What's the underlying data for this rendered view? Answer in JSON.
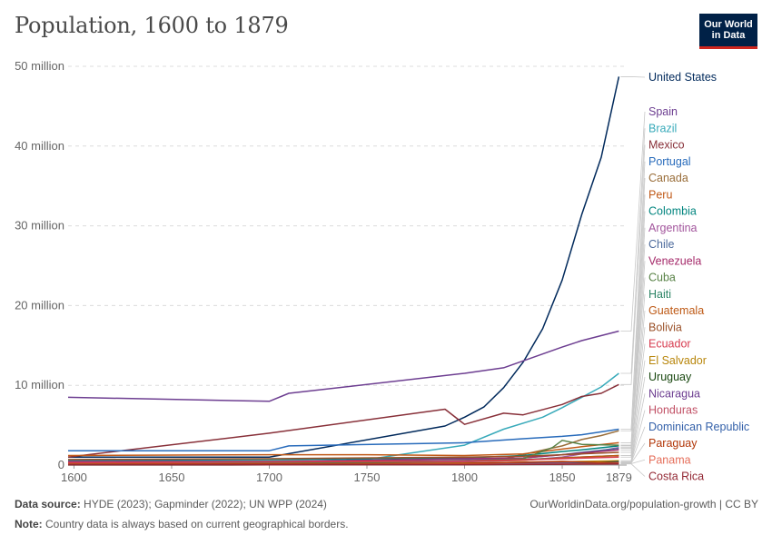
{
  "title": "Population, 1600 to 1879",
  "logo": {
    "line1": "Our World",
    "line2": "in Data"
  },
  "footer": {
    "source_label": "Data source:",
    "source_text": "HYDE (2023); Gapminder (2022); UN WPP (2024)",
    "url_text": "OurWorldinData.org/population-growth | CC BY",
    "note_label": "Note:",
    "note_text": "Country data is always based on current geographical borders."
  },
  "chart_data": {
    "type": "line",
    "title": "Population, 1600 to 1879",
    "xlim": [
      1597,
      1883
    ],
    "ylim": [
      0,
      50000000
    ],
    "x_ticks": [
      {
        "value": 1600,
        "label": "1600"
      },
      {
        "value": 1650,
        "label": "1650"
      },
      {
        "value": 1700,
        "label": "1700"
      },
      {
        "value": 1750,
        "label": "1750"
      },
      {
        "value": 1800,
        "label": "1800"
      },
      {
        "value": 1850,
        "label": "1850"
      },
      {
        "value": 1879,
        "label": "1879"
      }
    ],
    "y_ticks": [
      {
        "value": 0,
        "label": "0"
      },
      {
        "value": 10000000,
        "label": "10 million"
      },
      {
        "value": 20000000,
        "label": "20 million"
      },
      {
        "value": 30000000,
        "label": "30 million"
      },
      {
        "value": 40000000,
        "label": "40 million"
      },
      {
        "value": 50000000,
        "label": "50 million"
      }
    ],
    "grid": "horizontal dashed",
    "legend": "right",
    "series": [
      {
        "name": "United States",
        "color": "#00295b",
        "points": [
          [
            1597,
            1000000
          ],
          [
            1700,
            1000000
          ],
          [
            1790,
            4900000
          ],
          [
            1800,
            6000000
          ],
          [
            1810,
            7300000
          ],
          [
            1820,
            9700000
          ],
          [
            1830,
            12900000
          ],
          [
            1840,
            17100000
          ],
          [
            1850,
            23200000
          ],
          [
            1860,
            31400000
          ],
          [
            1870,
            38600000
          ],
          [
            1879,
            48700000
          ]
        ]
      },
      {
        "name": "Spain",
        "color": "#6d3e91",
        "points": [
          [
            1597,
            8500000
          ],
          [
            1700,
            8000000
          ],
          [
            1710,
            9000000
          ],
          [
            1800,
            11500000
          ],
          [
            1820,
            12200000
          ],
          [
            1850,
            14800000
          ],
          [
            1860,
            15600000
          ],
          [
            1879,
            16800000
          ]
        ]
      },
      {
        "name": "Brazil",
        "color": "#38aaba",
        "points": [
          [
            1597,
            300000
          ],
          [
            1700,
            400000
          ],
          [
            1750,
            700000
          ],
          [
            1800,
            2500000
          ],
          [
            1820,
            4500000
          ],
          [
            1840,
            6000000
          ],
          [
            1850,
            7200000
          ],
          [
            1860,
            8500000
          ],
          [
            1870,
            9800000
          ],
          [
            1879,
            11500000
          ]
        ]
      },
      {
        "name": "Mexico",
        "color": "#883039",
        "points": [
          [
            1597,
            1000000
          ],
          [
            1700,
            4000000
          ],
          [
            1790,
            7000000
          ],
          [
            1800,
            5100000
          ],
          [
            1820,
            6500000
          ],
          [
            1830,
            6300000
          ],
          [
            1850,
            7600000
          ],
          [
            1860,
            8600000
          ],
          [
            1870,
            9000000
          ],
          [
            1879,
            10100000
          ]
        ]
      },
      {
        "name": "Portugal",
        "color": "#286bbb",
        "points": [
          [
            1597,
            1800000
          ],
          [
            1700,
            1800000
          ],
          [
            1710,
            2400000
          ],
          [
            1800,
            2800000
          ],
          [
            1830,
            3300000
          ],
          [
            1850,
            3600000
          ],
          [
            1860,
            3800000
          ],
          [
            1879,
            4500000
          ]
        ]
      },
      {
        "name": "Canada",
        "color": "#996d39",
        "points": [
          [
            1597,
            200000
          ],
          [
            1700,
            300000
          ],
          [
            1800,
            500000
          ],
          [
            1820,
            800000
          ],
          [
            1850,
            2400000
          ],
          [
            1860,
            3200000
          ],
          [
            1870,
            3700000
          ],
          [
            1879,
            4300000
          ]
        ]
      },
      {
        "name": "Peru",
        "color": "#c05917",
        "points": [
          [
            1597,
            1200000
          ],
          [
            1700,
            1300000
          ],
          [
            1750,
            1300000
          ],
          [
            1800,
            1200000
          ],
          [
            1830,
            1400000
          ],
          [
            1850,
            2000000
          ],
          [
            1860,
            2300000
          ],
          [
            1879,
            2800000
          ]
        ]
      },
      {
        "name": "Colombia",
        "color": "#00847e",
        "points": [
          [
            1597,
            600000
          ],
          [
            1700,
            700000
          ],
          [
            1800,
            900000
          ],
          [
            1830,
            1200000
          ],
          [
            1850,
            1700000
          ],
          [
            1860,
            1900000
          ],
          [
            1879,
            2400000
          ]
        ]
      },
      {
        "name": "Argentina",
        "color": "#a2559c",
        "points": [
          [
            1597,
            300000
          ],
          [
            1700,
            300000
          ],
          [
            1800,
            400000
          ],
          [
            1830,
            600000
          ],
          [
            1850,
            1000000
          ],
          [
            1860,
            1400000
          ],
          [
            1879,
            2200000
          ]
        ]
      },
      {
        "name": "Chile",
        "color": "#4c6a9c",
        "points": [
          [
            1597,
            500000
          ],
          [
            1700,
            500000
          ],
          [
            1800,
            700000
          ],
          [
            1830,
            900000
          ],
          [
            1850,
            1300000
          ],
          [
            1860,
            1600000
          ],
          [
            1879,
            2100000
          ]
        ]
      },
      {
        "name": "Venezuela",
        "color": "#a52a6a",
        "points": [
          [
            1597,
            400000
          ],
          [
            1700,
            400000
          ],
          [
            1800,
            800000
          ],
          [
            1830,
            900000
          ],
          [
            1850,
            1300000
          ],
          [
            1860,
            1500000
          ],
          [
            1879,
            1900000
          ]
        ]
      },
      {
        "name": "Cuba",
        "color": "#578145",
        "points": [
          [
            1597,
            100000
          ],
          [
            1700,
            200000
          ],
          [
            1800,
            500000
          ],
          [
            1830,
            800000
          ],
          [
            1845,
            2200000
          ],
          [
            1850,
            3100000
          ],
          [
            1860,
            2600000
          ],
          [
            1879,
            2500000
          ]
        ]
      },
      {
        "name": "Haiti",
        "color": "#2c8465",
        "points": [
          [
            1597,
            50000
          ],
          [
            1700,
            100000
          ],
          [
            1790,
            500000
          ],
          [
            1800,
            500000
          ],
          [
            1830,
            700000
          ],
          [
            1850,
            900000
          ],
          [
            1879,
            1200000
          ]
        ]
      },
      {
        "name": "Guatemala",
        "color": "#be5915",
        "points": [
          [
            1597,
            300000
          ],
          [
            1700,
            400000
          ],
          [
            1800,
            500000
          ],
          [
            1830,
            600000
          ],
          [
            1850,
            900000
          ],
          [
            1879,
            1200000
          ]
        ]
      },
      {
        "name": "Bolivia",
        "color": "#9a5129",
        "points": [
          [
            1597,
            700000
          ],
          [
            1700,
            800000
          ],
          [
            1800,
            1000000
          ],
          [
            1830,
            1100000
          ],
          [
            1850,
            1300000
          ],
          [
            1879,
            1600000
          ]
        ]
      },
      {
        "name": "Ecuador",
        "color": "#d73c50",
        "points": [
          [
            1597,
            300000
          ],
          [
            1700,
            400000
          ],
          [
            1800,
            500000
          ],
          [
            1850,
            800000
          ],
          [
            1879,
            1000000
          ]
        ]
      },
      {
        "name": "El Salvador",
        "color": "#b8860b",
        "points": [
          [
            1597,
            100000
          ],
          [
            1700,
            150000
          ],
          [
            1800,
            250000
          ],
          [
            1850,
            400000
          ],
          [
            1879,
            550000
          ]
        ]
      },
      {
        "name": "Uruguay",
        "color": "#18470f",
        "points": [
          [
            1597,
            10000
          ],
          [
            1700,
            20000
          ],
          [
            1800,
            60000
          ],
          [
            1850,
            130000
          ],
          [
            1879,
            420000
          ]
        ]
      },
      {
        "name": "Nicaragua",
        "color": "#6d3e91",
        "points": [
          [
            1597,
            80000
          ],
          [
            1700,
            100000
          ],
          [
            1800,
            180000
          ],
          [
            1850,
            270000
          ],
          [
            1879,
            330000
          ]
        ]
      },
      {
        "name": "Honduras",
        "color": "#c15065",
        "points": [
          [
            1597,
            80000
          ],
          [
            1700,
            100000
          ],
          [
            1800,
            150000
          ],
          [
            1850,
            250000
          ],
          [
            1879,
            330000
          ]
        ]
      },
      {
        "name": "Dominican Republic",
        "color": "#3360a9",
        "points": [
          [
            1597,
            50000
          ],
          [
            1700,
            80000
          ],
          [
            1800,
            120000
          ],
          [
            1850,
            200000
          ],
          [
            1879,
            300000
          ]
        ]
      },
      {
        "name": "Paraguay",
        "color": "#b13507",
        "points": [
          [
            1597,
            100000
          ],
          [
            1700,
            150000
          ],
          [
            1800,
            200000
          ],
          [
            1850,
            450000
          ],
          [
            1879,
            250000
          ]
        ]
      },
      {
        "name": "Panama",
        "color": "#e56e5a",
        "points": [
          [
            1597,
            40000
          ],
          [
            1700,
            50000
          ],
          [
            1800,
            80000
          ],
          [
            1850,
            130000
          ],
          [
            1879,
            180000
          ]
        ]
      },
      {
        "name": "Costa Rica",
        "color": "#932834",
        "points": [
          [
            1597,
            20000
          ],
          [
            1700,
            30000
          ],
          [
            1800,
            50000
          ],
          [
            1850,
            100000
          ],
          [
            1879,
            150000
          ]
        ]
      }
    ]
  }
}
